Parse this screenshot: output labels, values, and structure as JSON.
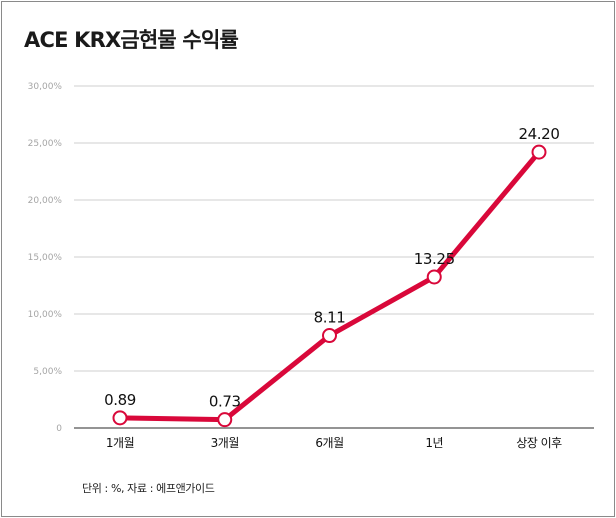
{
  "title": "ACE KRX금현물  수익률",
  "source_note": "단위 : %, 자료 : 에프앤가이드",
  "colors": {
    "line": "#d9083a",
    "marker_fill": "#ffffff",
    "grid": "#cfcfcf",
    "axis": "#555555",
    "ytick": "#a5a5a5",
    "text": "#111111"
  },
  "chart_data": {
    "type": "line",
    "title": "ACE KRX금현물  수익률",
    "xlabel": "",
    "ylabel": "",
    "categories": [
      "1개월",
      "3개월",
      "6개월",
      "1년",
      "상장 이후"
    ],
    "series": [
      {
        "values": [
          0.89,
          0.73,
          8.11,
          13.25,
          24.2
        ]
      }
    ],
    "data_labels": [
      "0.89",
      "0.73",
      "8.11",
      "13.25",
      "24.20"
    ],
    "ylim": [
      0,
      30
    ],
    "yticks": [
      0,
      5,
      10,
      15,
      20,
      25,
      30
    ],
    "ytick_labels": [
      "0",
      "5,00%",
      "10,00%",
      "15,00%",
      "20,00%",
      "25,00%",
      "30,00%"
    ],
    "grid": true,
    "legend": "none"
  }
}
